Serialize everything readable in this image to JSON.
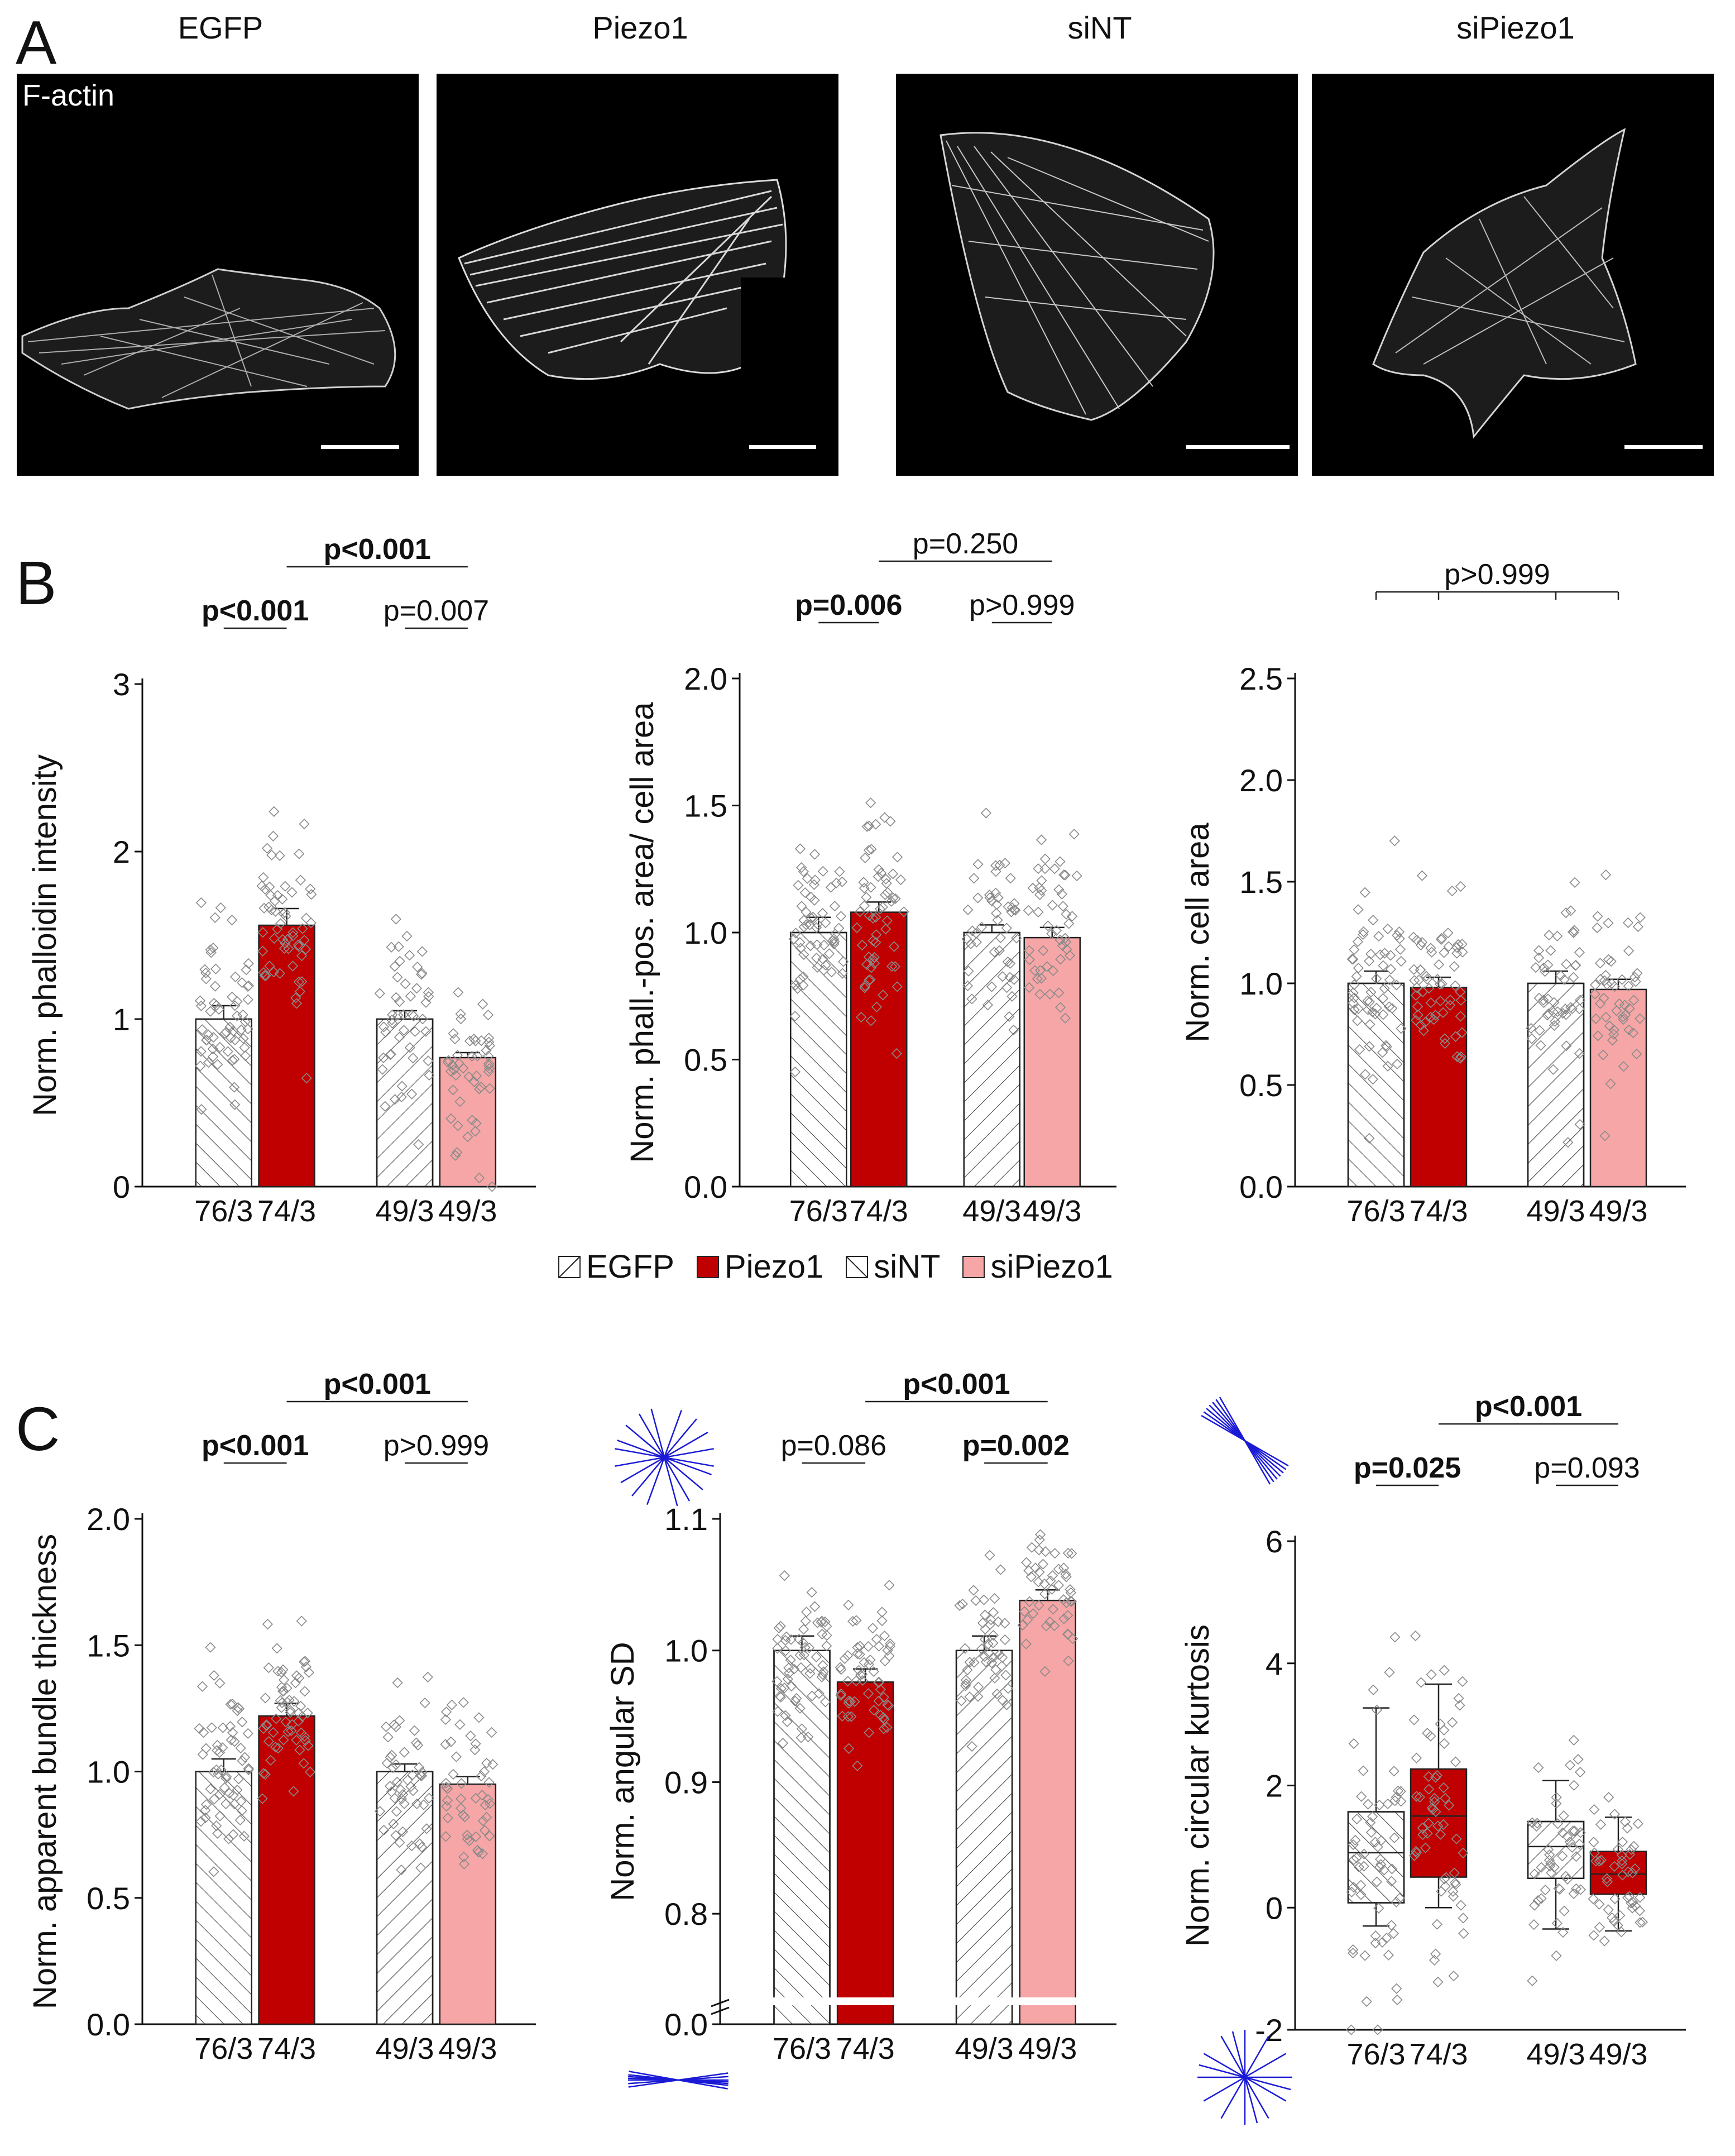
{
  "panel_labels": {
    "a": "A",
    "b": "B",
    "c": "C"
  },
  "panel_a": {
    "images": [
      {
        "title": "EGFP",
        "tag": "F-actin"
      },
      {
        "title": "Piezo1"
      },
      {
        "title": "siNT"
      },
      {
        "title": "siPiezo1"
      }
    ]
  },
  "legend": {
    "items": [
      {
        "label": "EGFP",
        "pattern": "hatch-fwd",
        "color": "#ffffff"
      },
      {
        "label": "Piezo1",
        "pattern": "solid",
        "color": "#c00000"
      },
      {
        "label": "siNT",
        "pattern": "hatch-back",
        "color": "#ffffff"
      },
      {
        "label": "siPiezo1",
        "pattern": "solid",
        "color": "#f6a6a6"
      }
    ]
  },
  "colors": {
    "piezo1": "#c00000",
    "sipiezo1": "#f6a6a6",
    "axis": "#111111",
    "points": "#8a8a8a",
    "orientation_lines": "#1a1ad6"
  },
  "chart_data": [
    {
      "id": "B1",
      "type": "bar",
      "ylabel": "Norm. phalloidin intensity",
      "ylim": [
        0,
        3
      ],
      "yticks": [
        "0",
        "1",
        "2",
        "3"
      ],
      "categories": [
        "76/3",
        "74/3",
        "49/3",
        "49/3"
      ],
      "series": [
        {
          "name": "mean",
          "values": [
            1.0,
            1.56,
            1.0,
            0.77
          ]
        }
      ],
      "errors": [
        0.08,
        0.1,
        0.05,
        0.03
      ],
      "comparisons": [
        {
          "label": "p<0.001",
          "bold": true,
          "pair": [
            0,
            1
          ]
        },
        {
          "label": "p=0.007",
          "bold": false,
          "pair": [
            2,
            3
          ]
        },
        {
          "label": "p<0.001",
          "bold": true,
          "pair": [
            1,
            3
          ],
          "top": true
        }
      ]
    },
    {
      "id": "B2",
      "type": "bar",
      "ylabel": "Norm. phall.-pos. area/ cell area",
      "ylim": [
        0,
        2
      ],
      "yticks": [
        "0.0",
        "0.5",
        "1.0",
        "1.5",
        "2.0"
      ],
      "categories": [
        "76/3",
        "74/3",
        "49/3",
        "49/3"
      ],
      "series": [
        {
          "name": "mean",
          "values": [
            1.0,
            1.08,
            1.0,
            0.98
          ]
        }
      ],
      "errors": [
        0.06,
        0.04,
        0.03,
        0.04
      ],
      "comparisons": [
        {
          "label": "p=0.006",
          "bold": true,
          "pair": [
            0,
            1
          ]
        },
        {
          "label": "p>0.999",
          "bold": false,
          "pair": [
            2,
            3
          ]
        },
        {
          "label": "p=0.250",
          "bold": false,
          "pair": [
            1,
            3
          ],
          "top": true
        }
      ]
    },
    {
      "id": "B3",
      "type": "bar",
      "ylabel": "Norm. cell area",
      "ylim": [
        0,
        2.5
      ],
      "yticks": [
        "0.0",
        "0.5",
        "1.0",
        "1.5",
        "2.0",
        "2.5"
      ],
      "categories": [
        "76/3",
        "74/3",
        "49/3",
        "49/3"
      ],
      "series": [
        {
          "name": "mean",
          "values": [
            1.0,
            0.98,
            1.0,
            0.97
          ]
        }
      ],
      "errors": [
        0.06,
        0.05,
        0.06,
        0.05
      ],
      "comparisons": [
        {
          "label": "p>0.999",
          "bold": false,
          "pair": [
            0,
            3
          ],
          "top": true,
          "all": true
        }
      ]
    },
    {
      "id": "C1",
      "type": "bar",
      "ylabel": "Norm. apparent bundle thickness",
      "ylim": [
        0,
        2
      ],
      "yticks": [
        "0.0",
        "0.5",
        "1.0",
        "1.5",
        "2.0"
      ],
      "categories": [
        "76/3",
        "74/3",
        "49/3",
        "49/3"
      ],
      "series": [
        {
          "name": "mean",
          "values": [
            1.0,
            1.22,
            1.0,
            0.95
          ]
        }
      ],
      "errors": [
        0.05,
        0.05,
        0.03,
        0.03
      ],
      "comparisons": [
        {
          "label": "p<0.001",
          "bold": true,
          "pair": [
            0,
            1
          ]
        },
        {
          "label": "p>0.999",
          "bold": false,
          "pair": [
            2,
            3
          ]
        },
        {
          "label": "p<0.001",
          "bold": true,
          "pair": [
            1,
            3
          ],
          "top": true
        }
      ]
    },
    {
      "id": "C2",
      "type": "bar",
      "ylabel": "Norm. angular SD",
      "ylim": [
        0.75,
        1.1
      ],
      "yticks": [
        "0.8",
        "0.9",
        "1.0",
        "1.1"
      ],
      "ybreak_zero": "0.0",
      "categories": [
        "76/3",
        "74/3",
        "49/3",
        "49/3"
      ],
      "series": [
        {
          "name": "mean",
          "values": [
            1.0,
            0.976,
            1.0,
            1.038
          ]
        }
      ],
      "errors": [
        0.011,
        0.01,
        0.011,
        0.008
      ],
      "comparisons": [
        {
          "label": "p=0.086",
          "bold": false,
          "pair": [
            0,
            1
          ]
        },
        {
          "label": "p=0.002",
          "bold": true,
          "pair": [
            2,
            3
          ]
        },
        {
          "label": "p<0.001",
          "bold": true,
          "pair": [
            1,
            3
          ],
          "top": true
        }
      ]
    },
    {
      "id": "C3",
      "type": "box",
      "ylabel": "Norm. circular kurtosis",
      "ylim": [
        -2,
        6
      ],
      "yticks": [
        "-2",
        "0",
        "2",
        "4",
        "6"
      ],
      "categories": [
        "76/3",
        "74/3",
        "49/3",
        "49/3"
      ],
      "boxes": [
        {
          "q1": 0.08,
          "median": 0.9,
          "q3": 1.57,
          "whisker_low": -0.3,
          "whisker_high": 3.27
        },
        {
          "q1": 0.5,
          "median": 1.5,
          "q3": 2.27,
          "whisker_low": 0.0,
          "whisker_high": 3.66
        },
        {
          "q1": 0.48,
          "median": 1.0,
          "q3": 1.41,
          "whisker_low": -0.35,
          "whisker_high": 2.08
        },
        {
          "q1": 0.22,
          "median": 0.55,
          "q3": 0.92,
          "whisker_low": -0.38,
          "whisker_high": 1.48
        }
      ],
      "comparisons": [
        {
          "label": "p=0.025",
          "bold": true,
          "pair": [
            0,
            1
          ]
        },
        {
          "label": "p=0.093",
          "bold": false,
          "pair": [
            2,
            3
          ]
        },
        {
          "label": "p<0.001",
          "bold": true,
          "pair": [
            1,
            3
          ],
          "top": true
        }
      ]
    }
  ]
}
